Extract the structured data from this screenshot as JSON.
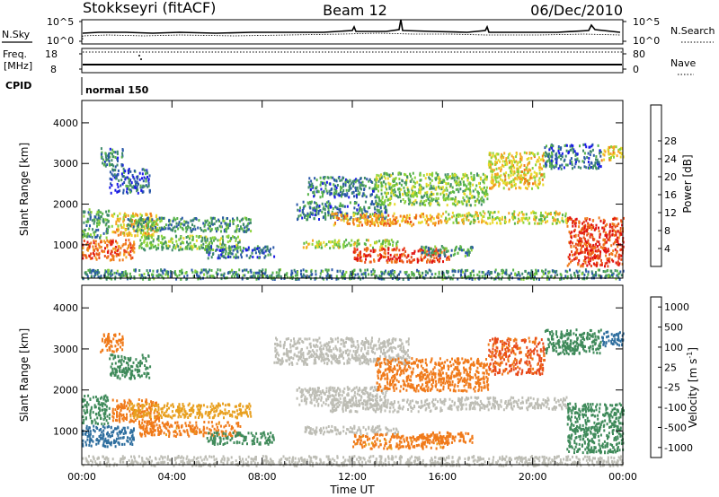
{
  "header": {
    "station": "Stokkseyri (fitACF)",
    "beam": "Beam 12",
    "date": "06/Dec/2010"
  },
  "info_panels": {
    "nsky_label": "N.Sky",
    "nsky_ticks": [
      "10^5",
      "10^0"
    ],
    "nsearch_label": "N.Search",
    "nsearch_ticks": [
      "10^5",
      "10^0"
    ],
    "freq_label": "Freq.",
    "freq_unit": "[MHz]",
    "freq_ticks": [
      "18",
      "8"
    ],
    "nave_label": "Nave",
    "nave_ticks": [
      "80",
      "0"
    ],
    "cpid_label": "CPID",
    "cpid_value": "normal 150"
  },
  "colors": {
    "power": [
      "#1919e6",
      "#2a58a8",
      "#3f8a6a",
      "#58b34a",
      "#8cd33a",
      "#e8d92a",
      "#f5a623",
      "#f07a1a",
      "#e84a1a",
      "#e01010"
    ],
    "velocity": [
      "#2a3aa8",
      "#2e6e9e",
      "#3f8a5a",
      "#6cc23a",
      "#c8c8c0",
      "#e8a020",
      "#f07a1a",
      "#e84a1a",
      "#e01010"
    ],
    "ground_scatter": "#bdbdb5"
  },
  "chart_data": [
    {
      "type": "heatmap",
      "panel": "power",
      "ylabel": "Slant Range [km]",
      "ylim": [
        180,
        4550
      ],
      "yticks": [
        "1000",
        "2000",
        "3000",
        "4000"
      ],
      "xlim_hours": [
        0,
        24
      ],
      "colorbar": {
        "label": "Power [dB]",
        "ticks": [
          "4",
          "8",
          "12",
          "16",
          "20",
          "24",
          "28"
        ]
      },
      "bands": [
        {
          "t0": 0.0,
          "t1": 2.3,
          "r0": 650,
          "r1": 1150,
          "value": 24
        },
        {
          "t0": 0.0,
          "t1": 1.2,
          "r0": 1200,
          "r1": 1900,
          "value": 9
        },
        {
          "t0": 1.3,
          "t1": 3.4,
          "r0": 1250,
          "r1": 1800,
          "value": 18
        },
        {
          "t0": 2.0,
          "t1": 7.5,
          "r0": 1350,
          "r1": 1700,
          "value": 8
        },
        {
          "t0": 2.5,
          "t1": 7.0,
          "r0": 900,
          "r1": 1250,
          "value": 11
        },
        {
          "t0": 5.5,
          "t1": 8.5,
          "r0": 700,
          "r1": 1000,
          "value": 6
        },
        {
          "t0": 0.8,
          "t1": 1.8,
          "r0": 2950,
          "r1": 3400,
          "value": 7
        },
        {
          "t0": 1.2,
          "t1": 3.0,
          "r0": 2300,
          "r1": 2900,
          "value": 5
        },
        {
          "t0": 9.5,
          "t1": 13.5,
          "r0": 1650,
          "r1": 2100,
          "value": 7
        },
        {
          "t0": 11.0,
          "t1": 16.0,
          "r0": 1500,
          "r1": 1800,
          "value": 20
        },
        {
          "t0": 9.8,
          "t1": 14.0,
          "r0": 950,
          "r1": 1150,
          "value": 14
        },
        {
          "t0": 12.0,
          "t1": 16.3,
          "r0": 600,
          "r1": 950,
          "value": 26
        },
        {
          "t0": 15.0,
          "t1": 17.3,
          "r0": 750,
          "r1": 1000,
          "value": 9
        },
        {
          "t0": 10.0,
          "t1": 13.0,
          "r0": 2200,
          "r1": 2700,
          "value": 7
        },
        {
          "t0": 13.0,
          "t1": 18.0,
          "r0": 2000,
          "r1": 2800,
          "value": 12
        },
        {
          "t0": 16.0,
          "t1": 21.5,
          "r0": 1550,
          "r1": 1850,
          "value": 15
        },
        {
          "t0": 18.0,
          "t1": 20.5,
          "r0": 2400,
          "r1": 3300,
          "value": 17
        },
        {
          "t0": 20.5,
          "t1": 23.0,
          "r0": 2900,
          "r1": 3500,
          "value": 6
        },
        {
          "t0": 21.5,
          "t1": 24.0,
          "r0": 500,
          "r1": 1700,
          "value": 26
        },
        {
          "t0": 23.0,
          "t1": 24.0,
          "r0": 3100,
          "r1": 3450,
          "value": 18
        },
        {
          "t0": 0.0,
          "t1": 24.0,
          "r0": 180,
          "r1": 420,
          "value": 8
        }
      ]
    },
    {
      "type": "heatmap",
      "panel": "velocity",
      "ylabel": "Slant Range [km]",
      "ylim": [
        180,
        4550
      ],
      "yticks": [
        "1000",
        "2000",
        "3000",
        "4000"
      ],
      "xlim_hours": [
        0,
        24
      ],
      "xticks": [
        "00:00",
        "04:00",
        "08:00",
        "12:00",
        "16:00",
        "20:00",
        "00:00"
      ],
      "xlabel": "Time UT",
      "colorbar": {
        "label": "Velocity [m s",
        "label_exponent": "-1",
        "label_close": "]",
        "ticks": [
          "1000",
          "500",
          "100",
          "25",
          "-25",
          "-100",
          "-500",
          "-1000"
        ]
      },
      "bands": [
        {
          "t0": 0.0,
          "t1": 2.3,
          "r0": 650,
          "r1": 1150,
          "value": 300
        },
        {
          "t0": 0.0,
          "t1": 1.2,
          "r0": 1200,
          "r1": 1900,
          "value": 60
        },
        {
          "t0": 1.3,
          "t1": 3.4,
          "r0": 1250,
          "r1": 1800,
          "value": -200
        },
        {
          "t0": 2.0,
          "t1": 7.5,
          "r0": 1350,
          "r1": 1700,
          "value": -60
        },
        {
          "t0": 2.5,
          "t1": 7.0,
          "r0": 900,
          "r1": 1250,
          "value": -150
        },
        {
          "t0": 5.5,
          "t1": 8.5,
          "r0": 700,
          "r1": 1000,
          "value": 60
        },
        {
          "t0": 0.8,
          "t1": 1.8,
          "r0": 2950,
          "r1": 3400,
          "value": -200
        },
        {
          "t0": 1.2,
          "t1": 3.0,
          "r0": 2300,
          "r1": 2900,
          "value": 60
        },
        {
          "t0": 9.5,
          "t1": 13.5,
          "r0": 1650,
          "r1": 2100,
          "value": "gs"
        },
        {
          "t0": 11.0,
          "t1": 16.0,
          "r0": 1500,
          "r1": 1800,
          "value": "gs"
        },
        {
          "t0": 9.8,
          "t1": 14.0,
          "r0": 950,
          "r1": 1150,
          "value": "gs"
        },
        {
          "t0": 12.0,
          "t1": 16.3,
          "r0": 600,
          "r1": 950,
          "value": -150
        },
        {
          "t0": 15.0,
          "t1": 17.3,
          "r0": 750,
          "r1": 1000,
          "value": -200
        },
        {
          "t0": 8.5,
          "t1": 14.5,
          "r0": 2650,
          "r1": 3300,
          "value": "gs"
        },
        {
          "t0": 13.0,
          "t1": 18.0,
          "r0": 2000,
          "r1": 2800,
          "value": -300
        },
        {
          "t0": 16.0,
          "t1": 21.5,
          "r0": 1550,
          "r1": 1850,
          "value": "gs"
        },
        {
          "t0": 18.0,
          "t1": 20.5,
          "r0": 2400,
          "r1": 3300,
          "value": -600
        },
        {
          "t0": 20.5,
          "t1": 23.0,
          "r0": 2900,
          "r1": 3500,
          "value": 60
        },
        {
          "t0": 21.5,
          "t1": 24.0,
          "r0": 500,
          "r1": 1700,
          "value": 60
        },
        {
          "t0": 23.0,
          "t1": 24.0,
          "r0": 3100,
          "r1": 3450,
          "value": 300
        },
        {
          "t0": 0.0,
          "t1": 24.0,
          "r0": 180,
          "r1": 420,
          "value": "gs"
        }
      ]
    }
  ]
}
